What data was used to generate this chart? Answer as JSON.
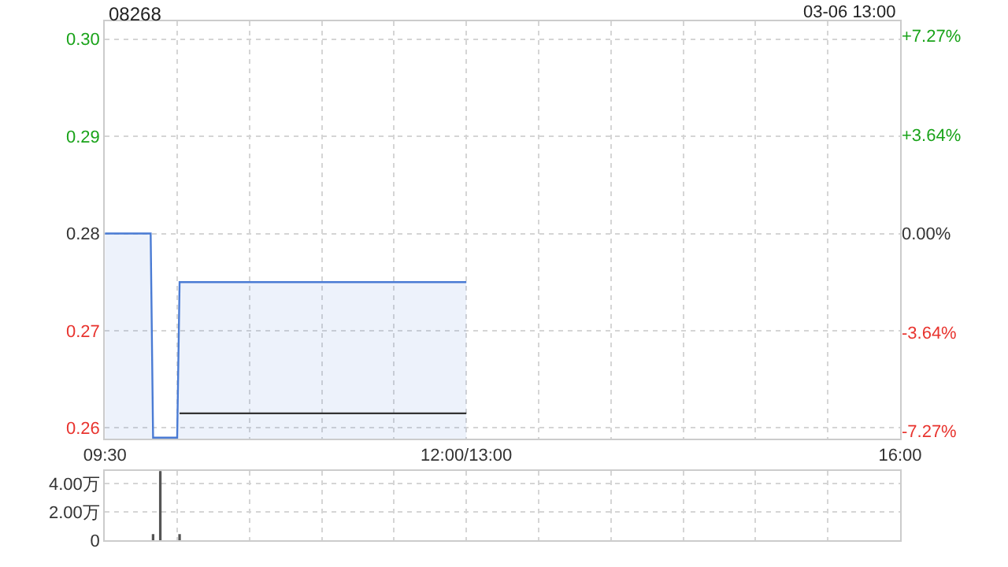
{
  "chart_data": [
    {
      "type": "line",
      "title": "08268",
      "annotations": [
        "03-06 13:00"
      ],
      "categories": [
        "09:30",
        null,
        null,
        null,
        null,
        null,
        null,
        null,
        null,
        null,
        null,
        null,
        null,
        null,
        null,
        null,
        null,
        null,
        null,
        null,
        null,
        null,
        null,
        null,
        null,
        null,
        null,
        null,
        null,
        null,
        null,
        null,
        null,
        null,
        null,
        null,
        null,
        null,
        null,
        null,
        null,
        null,
        null,
        null,
        null,
        null,
        null,
        null,
        null,
        null,
        null,
        null,
        null,
        null,
        null,
        null,
        null,
        null,
        null,
        null,
        null,
        null,
        null,
        null,
        null,
        null,
        null,
        null,
        null,
        null,
        null,
        null,
        null,
        null,
        null,
        null,
        null,
        null,
        null,
        null,
        null,
        null,
        null,
        null,
        null,
        null,
        null,
        null,
        null,
        null,
        null,
        null,
        null,
        null,
        null,
        null,
        null,
        null,
        null,
        null,
        null,
        null,
        null,
        null,
        null,
        null,
        null,
        null,
        null,
        null,
        null,
        null,
        null,
        null,
        null,
        null,
        null,
        null,
        null,
        null,
        null,
        null,
        null,
        null,
        null,
        null,
        null,
        null,
        null,
        null,
        null,
        null,
        null,
        null,
        null,
        null,
        null,
        null,
        null,
        null,
        null,
        null,
        null,
        null,
        null,
        null,
        null,
        null,
        null,
        null,
        "12:00/13:00",
        null,
        null,
        null,
        null,
        null,
        null,
        null,
        null,
        null,
        null,
        null,
        null,
        null,
        null,
        null,
        null,
        null,
        null,
        null,
        null,
        null,
        null,
        null,
        null,
        null,
        null,
        null,
        null,
        null,
        null,
        null,
        null,
        null,
        null,
        null,
        null,
        null,
        null,
        null,
        null,
        null,
        null,
        null,
        null,
        null,
        null,
        null,
        null,
        null,
        null,
        null,
        null,
        null,
        null,
        null,
        null,
        null,
        null,
        null,
        null,
        null,
        null,
        null,
        null,
        null,
        null,
        null,
        null,
        null,
        null,
        null,
        null,
        null,
        null,
        null,
        null,
        null,
        null,
        null,
        null,
        null,
        null,
        null,
        null,
        null,
        null,
        null,
        null,
        null,
        null,
        null,
        null,
        null,
        null,
        null,
        null,
        null,
        null,
        null,
        null,
        null,
        null,
        null,
        null,
        null,
        null,
        null,
        null,
        null,
        null,
        null,
        null,
        null,
        null,
        null,
        null,
        null,
        null,
        null,
        null,
        null,
        null,
        null,
        null,
        null,
        null,
        null,
        null,
        null,
        null,
        null,
        null,
        null,
        null,
        null,
        null,
        null,
        null,
        null,
        null,
        null,
        null,
        null,
        null,
        null,
        null,
        null,
        null,
        null,
        null,
        null,
        null,
        null,
        null,
        null,
        null,
        null,
        null,
        null,
        null,
        null,
        null,
        null,
        null,
        null,
        null,
        null,
        null,
        null,
        null,
        null,
        null,
        null,
        null,
        null,
        null,
        null,
        null,
        null,
        "16:00"
      ],
      "series": [
        {
          "type": "area",
          "color": "#4a7bd4",
          "values": [
            0.28,
            0.28,
            0.28,
            0.28,
            0.28,
            0.28,
            0.28,
            0.28,
            0.28,
            0.28,
            0.28,
            0.28,
            0.28,
            0.28,
            0.28,
            0.28,
            0.28,
            0.28,
            0.28,
            0.28,
            0.259,
            0.259,
            0.259,
            0.259,
            0.259,
            0.259,
            0.259,
            0.259,
            0.259,
            0.259,
            0.259,
            0.275,
            0.275,
            0.275,
            0.275,
            0.275,
            0.275,
            0.275,
            0.275,
            0.275,
            0.275,
            0.275,
            0.275,
            0.275,
            0.275,
            0.275,
            0.275,
            0.275,
            0.275,
            0.275,
            0.275,
            0.275,
            0.275,
            0.275,
            0.275,
            0.275,
            0.275,
            0.275,
            0.275,
            0.275,
            0.275,
            0.275,
            0.275,
            0.275,
            0.275,
            0.275,
            0.275,
            0.275,
            0.275,
            0.275,
            0.275,
            0.275,
            0.275,
            0.275,
            0.275,
            0.275,
            0.275,
            0.275,
            0.275,
            0.275,
            0.275,
            0.275,
            0.275,
            0.275,
            0.275,
            0.275,
            0.275,
            0.275,
            0.275,
            0.275,
            0.275,
            0.275,
            0.275,
            0.275,
            0.275,
            0.275,
            0.275,
            0.275,
            0.275,
            0.275,
            0.275,
            0.275,
            0.275,
            0.275,
            0.275,
            0.275,
            0.275,
            0.275,
            0.275,
            0.275,
            0.275,
            0.275,
            0.275,
            0.275,
            0.275,
            0.275,
            0.275,
            0.275,
            0.275,
            0.275,
            0.275,
            0.275,
            0.275,
            0.275,
            0.275,
            0.275,
            0.275,
            0.275,
            0.275,
            0.275,
            0.275,
            0.275,
            0.275,
            0.275,
            0.275,
            0.275,
            0.275,
            0.275,
            0.275,
            0.275,
            0.275,
            0.275,
            0.275,
            0.275,
            0.275,
            0.275,
            0.275,
            0.275,
            0.275,
            0.275,
            0.275,
            null,
            null,
            null,
            null,
            null,
            null,
            null,
            null,
            null,
            null,
            null,
            null,
            null,
            null,
            null,
            null,
            null,
            null,
            null,
            null,
            null,
            null,
            null,
            null,
            null,
            null,
            null,
            null,
            null,
            null,
            null,
            null,
            null,
            null,
            null,
            null,
            null,
            null,
            null,
            null,
            null,
            null,
            null,
            null,
            null,
            null,
            null,
            null,
            null,
            null,
            null,
            null,
            null,
            null,
            null,
            null,
            null,
            null,
            null,
            null,
            null,
            null,
            null,
            null,
            null,
            null,
            null,
            null,
            null,
            null,
            null,
            null,
            null,
            null,
            null,
            null,
            null,
            null,
            null,
            null,
            null,
            null,
            null,
            null,
            null,
            null,
            null,
            null,
            null,
            null,
            null,
            null,
            null,
            null,
            null,
            null,
            null,
            null,
            null,
            null,
            null,
            null,
            null,
            null,
            null,
            null,
            null,
            null,
            null,
            null,
            null,
            null,
            null,
            null,
            null,
            null,
            null,
            null,
            null,
            null,
            null,
            null,
            null,
            null,
            null,
            null,
            null,
            null,
            null,
            null,
            null,
            null,
            null,
            null,
            null,
            null,
            null,
            null,
            null,
            null,
            null,
            null,
            null,
            null,
            null,
            null,
            null,
            null,
            null,
            null,
            null,
            null,
            null,
            null,
            null,
            null,
            null,
            null,
            null,
            null,
            null,
            null,
            null,
            null,
            null,
            null,
            null,
            null,
            null,
            null,
            null,
            null,
            null,
            null,
            null,
            null,
            null,
            null,
            null,
            null
          ]
        },
        {
          "color": "#333333",
          "values": [
            null,
            null,
            null,
            null,
            null,
            null,
            null,
            null,
            null,
            null,
            null,
            null,
            null,
            null,
            null,
            null,
            null,
            null,
            null,
            null,
            null,
            null,
            null,
            null,
            null,
            null,
            null,
            null,
            null,
            null,
            null,
            0.2615,
            0.2615,
            0.2615,
            0.2615,
            0.2615,
            0.2615,
            0.2615,
            0.2615,
            0.2615,
            0.2615,
            0.2615,
            0.2615,
            0.2615,
            0.2615,
            0.2615,
            0.2615,
            0.2615,
            0.2615,
            0.2615,
            0.2615,
            0.2615,
            0.2615,
            0.2615,
            0.2615,
            0.2615,
            0.2615,
            0.2615,
            0.2615,
            0.2615,
            0.2615,
            0.2615,
            0.2615,
            0.2615,
            0.2615,
            0.2615,
            0.2615,
            0.2615,
            0.2615,
            0.2615,
            0.2615,
            0.2615,
            0.2615,
            0.2615,
            0.2615,
            0.2615,
            0.2615,
            0.2615,
            0.2615,
            0.2615,
            0.2615,
            0.2615,
            0.2615,
            0.2615,
            0.2615,
            0.2615,
            0.2615,
            0.2615,
            0.2615,
            0.2615,
            0.2615,
            0.2615,
            0.2615,
            0.2615,
            0.2615,
            0.2615,
            0.2615,
            0.2615,
            0.2615,
            0.2615,
            0.2615,
            0.2615,
            0.2615,
            0.2615,
            0.2615,
            0.2615,
            0.2615,
            0.2615,
            0.2615,
            0.2615,
            0.2615,
            0.2615,
            0.2615,
            0.2615,
            0.2615,
            0.2615,
            0.2615,
            0.2615,
            0.2615,
            0.2615,
            0.2615,
            0.2615,
            0.2615,
            0.2615,
            0.2615,
            0.2615,
            0.2615,
            0.2615,
            0.2615,
            0.2615,
            0.2615,
            0.2615,
            0.2615,
            0.2615,
            0.2615,
            0.2615,
            0.2615,
            0.2615,
            0.2615,
            0.2615,
            0.2615,
            0.2615,
            0.2615,
            0.2615,
            0.2615,
            0.2615,
            0.2615,
            0.2615,
            0.2615,
            0.2615,
            0.2615,
            null,
            null,
            null,
            null,
            null,
            null,
            null,
            null,
            null,
            null,
            null,
            null,
            null,
            null,
            null,
            null,
            null,
            null,
            null,
            null,
            null,
            null,
            null,
            null,
            null,
            null,
            null,
            null,
            null,
            null,
            null,
            null,
            null,
            null,
            null,
            null,
            null,
            null,
            null,
            null,
            null,
            null,
            null,
            null,
            null,
            null,
            null,
            null,
            null,
            null,
            null,
            null,
            null,
            null,
            null,
            null,
            null,
            null,
            null,
            null,
            null,
            null,
            null,
            null,
            null,
            null,
            null,
            null,
            null,
            null,
            null,
            null,
            null,
            null,
            null,
            null,
            null,
            null,
            null,
            null,
            null,
            null,
            null,
            null,
            null,
            null,
            null,
            null,
            null,
            null,
            null,
            null,
            null,
            null,
            null,
            null,
            null,
            null,
            null,
            null,
            null,
            null,
            null,
            null,
            null,
            null,
            null,
            null,
            null,
            null,
            null,
            null,
            null,
            null,
            null,
            null,
            null,
            null,
            null,
            null,
            null,
            null,
            null,
            null,
            null,
            null,
            null,
            null,
            null,
            null,
            null,
            null,
            null,
            null,
            null,
            null,
            null,
            null,
            null,
            null,
            null,
            null,
            null,
            null,
            null,
            null,
            null,
            null,
            null,
            null,
            null,
            null,
            null,
            null,
            null,
            null,
            null,
            null,
            null,
            null,
            null,
            null,
            null,
            null,
            null,
            null,
            null,
            null,
            null,
            null,
            null,
            null,
            null,
            null,
            null,
            null,
            null,
            null,
            null,
            null
          ]
        }
      ],
      "ylim": [
        0.2589,
        0.3018
      ],
      "yticks": [
        {
          "value": 0.26,
          "label": "0.26"
        },
        {
          "value": 0.27,
          "label": "0.27"
        },
        {
          "value": 0.28,
          "label": "0.28"
        },
        {
          "value": 0.29,
          "label": "0.29"
        },
        {
          "value": 0.3,
          "label": "0.30"
        }
      ],
      "y2lim": [
        -7.54,
        7.79
      ],
      "y2ticks": [
        {
          "value": -7.27,
          "label": "-7.27%"
        },
        {
          "value": -3.64,
          "label": "-3.64%"
        },
        {
          "value": 0,
          "label": "0.00%"
        },
        {
          "value": 3.64,
          "label": "+3.64%"
        },
        {
          "value": 7.27,
          "label": "+7.27%"
        }
      ],
      "grid": true,
      "marker": "none",
      "line_style": "solid"
    },
    {
      "type": "bar",
      "color": "#555555",
      "categories": [
        null,
        null,
        null,
        null,
        null,
        null,
        null,
        null,
        null,
        null,
        null,
        null,
        null,
        null,
        null,
        null,
        null,
        null,
        null,
        null,
        null,
        null,
        null,
        null,
        null,
        null,
        null,
        null,
        null,
        null,
        null,
        null,
        null,
        null,
        null,
        null,
        null,
        null,
        null,
        null,
        null,
        null,
        null,
        null,
        null,
        null,
        null,
        null,
        null,
        null,
        null,
        null,
        null,
        null,
        null,
        null,
        null,
        null,
        null,
        null,
        null,
        null,
        null,
        null,
        null,
        null,
        null,
        null,
        null,
        null,
        null,
        null,
        null,
        null,
        null,
        null,
        null,
        null,
        null,
        null,
        null,
        null,
        null,
        null,
        null,
        null,
        null,
        null,
        null,
        null,
        null,
        null,
        null,
        null,
        null,
        null,
        null,
        null,
        null,
        null,
        null,
        null,
        null,
        null,
        null,
        null,
        null,
        null,
        null,
        null,
        null,
        null,
        null,
        null,
        null,
        null,
        null,
        null,
        null,
        null,
        null,
        null,
        null,
        null,
        null,
        null,
        null,
        null,
        null,
        null,
        null,
        null,
        null,
        null,
        null,
        null,
        null,
        null,
        null,
        null,
        null,
        null,
        null,
        null,
        null,
        null,
        null,
        null,
        null,
        null,
        null,
        null,
        null,
        null,
        null,
        null,
        null,
        null,
        null,
        null,
        null,
        null,
        null,
        null,
        null,
        null,
        null,
        null,
        null,
        null,
        null,
        null,
        null,
        null,
        null,
        null,
        null,
        null,
        null,
        null,
        null,
        null,
        null,
        null,
        null,
        null,
        null,
        null,
        null,
        null,
        null,
        null,
        null,
        null,
        null,
        null,
        null,
        null,
        null,
        null,
        null,
        null,
        null,
        null,
        null,
        null,
        null,
        null,
        null,
        null,
        null,
        null,
        null,
        null,
        null,
        null,
        null,
        null,
        null,
        null,
        null,
        null,
        null,
        null,
        null,
        null,
        null,
        null,
        null,
        null,
        null,
        null,
        null,
        null,
        null,
        null,
        null,
        null,
        null,
        null,
        null,
        null,
        null,
        null,
        null,
        null,
        null,
        null,
        null,
        null,
        null,
        null,
        null,
        null,
        null,
        null,
        null,
        null,
        null,
        null,
        null,
        null,
        null,
        null,
        null,
        null,
        null,
        null,
        null,
        null,
        null,
        null,
        null,
        null,
        null,
        null,
        null,
        null,
        null,
        null,
        null,
        null,
        null,
        null,
        null,
        null,
        null,
        null,
        null,
        null,
        null,
        null,
        null,
        null,
        null,
        null,
        null,
        null,
        null,
        null,
        null,
        null,
        null,
        null,
        null,
        null,
        null,
        null,
        null,
        null,
        null,
        null,
        null,
        null,
        null,
        null,
        null,
        null,
        null,
        null,
        null,
        null,
        null,
        null,
        null,
        null,
        null,
        null,
        null,
        null,
        null
      ],
      "values": [
        null,
        null,
        null,
        null,
        null,
        null,
        null,
        null,
        null,
        null,
        null,
        null,
        null,
        null,
        null,
        null,
        null,
        null,
        null,
        null,
        0.4,
        null,
        null,
        4.9,
        null,
        null,
        null,
        null,
        null,
        null,
        null,
        0.4,
        null,
        null,
        null,
        null,
        null,
        null,
        null,
        null,
        null,
        null,
        null,
        null,
        null,
        null,
        null,
        null,
        null,
        null,
        null,
        null,
        null,
        null,
        null,
        null,
        null,
        null,
        null,
        null,
        null,
        null,
        null,
        null,
        null,
        null,
        null,
        null,
        null,
        null,
        null,
        null,
        null,
        null,
        null,
        null,
        null,
        null,
        null,
        null,
        null,
        null,
        null,
        null,
        null,
        null,
        null,
        null,
        null,
        null,
        null,
        null,
        null,
        null,
        null,
        null,
        null,
        null,
        null,
        null,
        null,
        null,
        null,
        null,
        null,
        null,
        null,
        null,
        null,
        null,
        null,
        null,
        null,
        null,
        null,
        null,
        null,
        null,
        null,
        null,
        null,
        null,
        null,
        null,
        null,
        null,
        null,
        null,
        null,
        null,
        null,
        null,
        null,
        null,
        null,
        null,
        null,
        null,
        null,
        null,
        null,
        null,
        null,
        null,
        null,
        null,
        null,
        null,
        null,
        null,
        null,
        null,
        null,
        null,
        null,
        null,
        null,
        null,
        null,
        null,
        null,
        null,
        null,
        null,
        null,
        null,
        null,
        null,
        null,
        null,
        null,
        null,
        null,
        null,
        null,
        null,
        null,
        null,
        null,
        null,
        null,
        null,
        null,
        null,
        null,
        null,
        null,
        null,
        null,
        null,
        null,
        null,
        null,
        null,
        null,
        null,
        null,
        null,
        null,
        null,
        null,
        null,
        null,
        null,
        null,
        null,
        null,
        null,
        null,
        null,
        null,
        null,
        null,
        null,
        null,
        null,
        null,
        null,
        null,
        null,
        null,
        null,
        null,
        null,
        null,
        null,
        null,
        null,
        null,
        null,
        null,
        null,
        null,
        null,
        null,
        null,
        null,
        null,
        null,
        null,
        null,
        null,
        null,
        null,
        null,
        null,
        null,
        null,
        null,
        null,
        null,
        null,
        null,
        null,
        null,
        null,
        null,
        null,
        null,
        null,
        null,
        null,
        null,
        null,
        null,
        null,
        null,
        null,
        null,
        null,
        null,
        null,
        null,
        null,
        null,
        null,
        null,
        null,
        null,
        null,
        null,
        null,
        null,
        null,
        null,
        null,
        null,
        null,
        null,
        null,
        null,
        null,
        null,
        null,
        null,
        null,
        null,
        null,
        null,
        null,
        null,
        null,
        null,
        null,
        null,
        null,
        null,
        null,
        null,
        null,
        null,
        null,
        null,
        null,
        null,
        null,
        null,
        null,
        null,
        null,
        null,
        null,
        null,
        null,
        null,
        null,
        null,
        null,
        null,
        null,
        null
      ],
      "ylim": [
        0,
        4.9
      ],
      "yticks": [
        0,
        {
          "value": 2,
          "label": "2.00万"
        },
        {
          "value": 4,
          "label": "4.00万"
        }
      ],
      "tick_labels": "y",
      "grid": true
    }
  ]
}
